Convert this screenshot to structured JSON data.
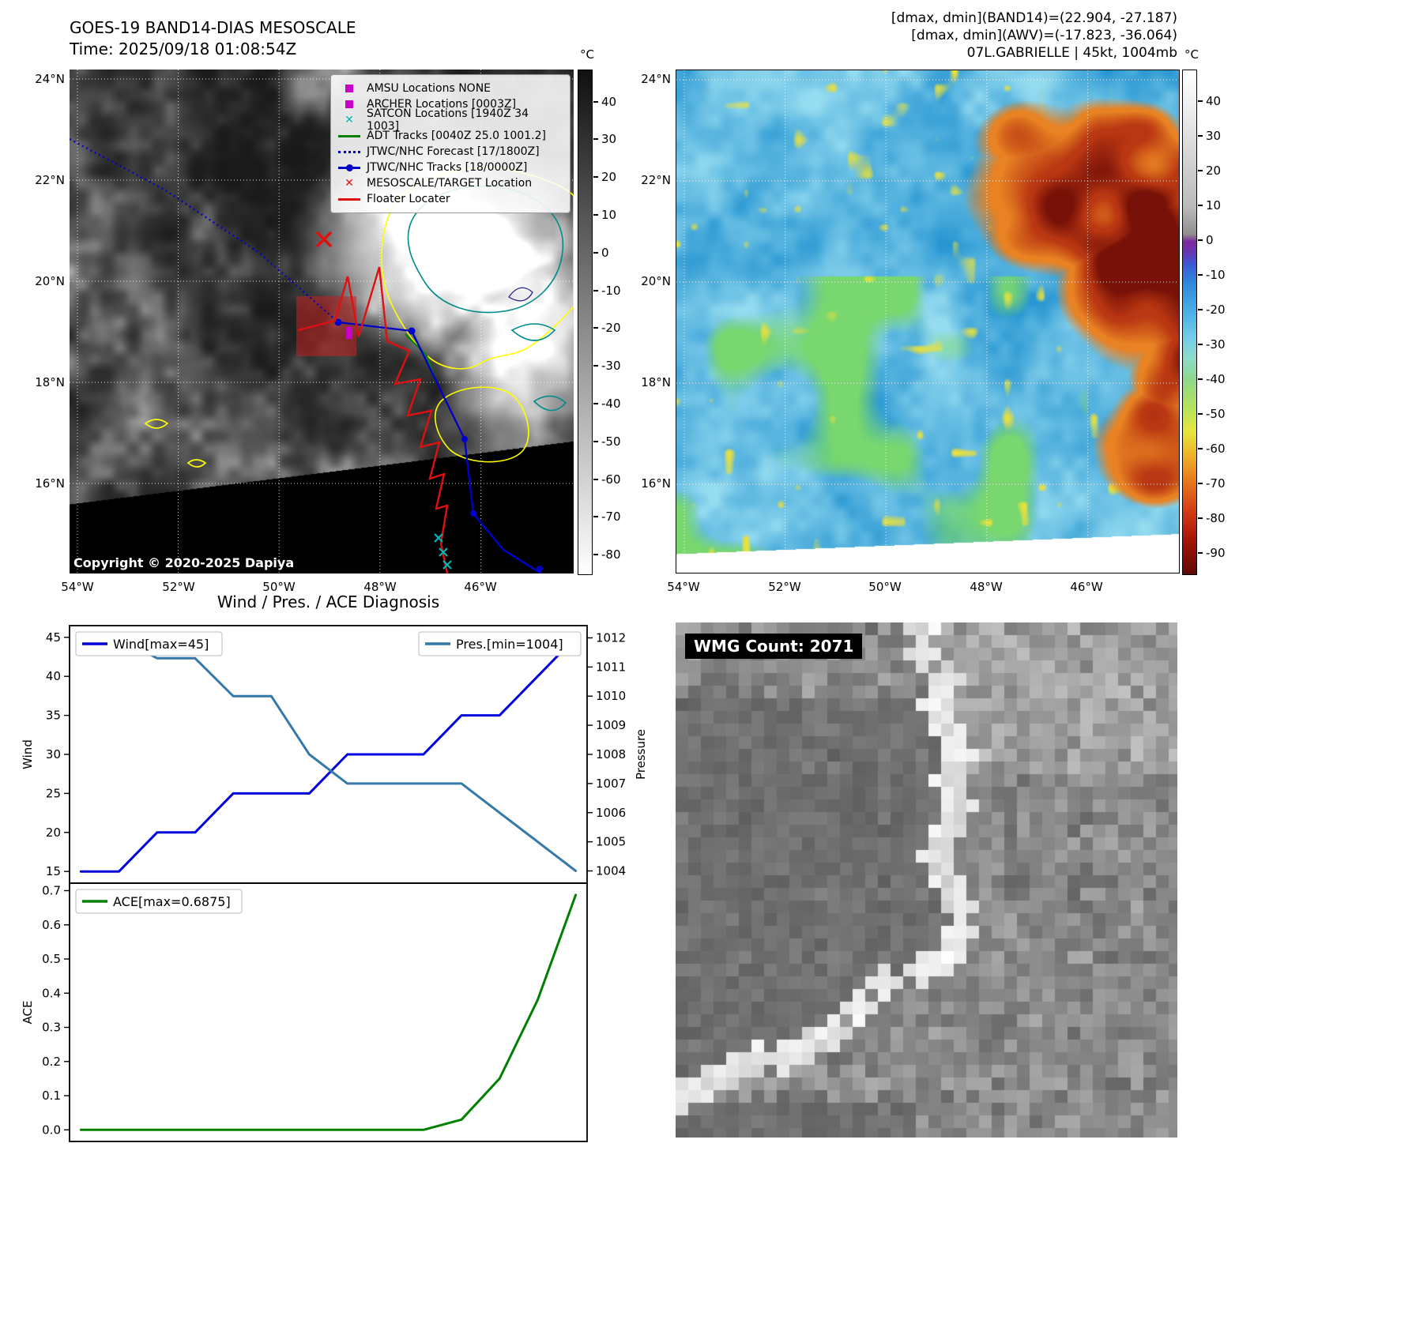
{
  "colors": {
    "wind_line": "#0000dd",
    "pressure_line": "#3579a8",
    "ace_line": "#008000",
    "track_blue": "#0000cc",
    "floater_red": "#e01010",
    "adt_green": "#008000",
    "satcon_cyan": "#00b8b8",
    "amsu_magenta": "#c800c8",
    "target_red": "#e01010"
  },
  "panel_band14": {
    "title_line1": "GOES-19 BAND14-DIAS MESOSCALE",
    "title_line2": "Time: 2025/09/18 01:08:54Z",
    "copyright": "Copyright © 2020-2025 Dapiya",
    "lat_ticks": [
      "24°N",
      "22°N",
      "20°N",
      "18°N",
      "16°N"
    ],
    "lon_ticks": [
      "54°W",
      "52°W",
      "50°W",
      "48°W",
      "46°W"
    ],
    "legend": [
      {
        "marker": "square-magenta",
        "label": "AMSU Locations NONE"
      },
      {
        "marker": "square-magenta",
        "label": "ARCHER Locations [0003Z]"
      },
      {
        "marker": "x-cyan",
        "label": "SATCON Locations [1940Z 34 1003]"
      },
      {
        "marker": "line-green",
        "label": "ADT Tracks [0040Z 25.0 1001.2]"
      },
      {
        "marker": "dotted-blue",
        "label": "JTWC/NHC Forecast [17/1800Z]"
      },
      {
        "marker": "line-dot-blue",
        "label": "JTWC/NHC Tracks [18/0000Z]"
      },
      {
        "marker": "x-red",
        "label": "MESOSCALE/TARGET Location"
      },
      {
        "marker": "line-red",
        "label": "Floater Locater"
      }
    ],
    "colorbar": {
      "unit": "°C",
      "ticks": [
        40,
        30,
        20,
        10,
        0,
        -10,
        -20,
        -30,
        -40,
        -50,
        -60,
        -70,
        -80
      ]
    }
  },
  "panel_awv": {
    "header_line1": "[dmax, dmin](BAND14)=(22.904, -27.187)",
    "header_line2": "[dmax, dmin](AWV)=(-17.823, -36.064)",
    "header_line3": "07L.GABRIELLE | 45kt, 1004mb",
    "lat_ticks": [
      "24°N",
      "22°N",
      "20°N",
      "18°N",
      "16°N"
    ],
    "lon_ticks": [
      "54°W",
      "52°W",
      "50°W",
      "48°W",
      "46°W"
    ],
    "colorbar": {
      "unit": "°C",
      "ticks": [
        40,
        30,
        20,
        10,
        0,
        -10,
        -20,
        -30,
        -40,
        -50,
        -60,
        -70,
        -80,
        -90
      ]
    }
  },
  "diagnosis": {
    "title": "Wind / Pres. / ACE Diagnosis"
  },
  "wmg": {
    "label": "WMG Count: 2071"
  },
  "chart_data": [
    {
      "type": "line",
      "title": "Wind / Pres. / ACE Diagnosis",
      "x": [
        0,
        1,
        2,
        3,
        4,
        5,
        6,
        7,
        8,
        9,
        10,
        11,
        12,
        13
      ],
      "series": [
        {
          "name": "Wind[max=45]",
          "axis": "left",
          "color": "#0000dd",
          "values": [
            15,
            15,
            20,
            20,
            25,
            25,
            25,
            30,
            30,
            30,
            35,
            35,
            40,
            45
          ]
        },
        {
          "name": "Pres.[min=1004]",
          "axis": "right",
          "color": "#3579a8",
          "values": [
            1012,
            1012,
            1011.3,
            1011.3,
            1010,
            1010,
            1008,
            1007,
            1007,
            1007,
            1007,
            1006,
            1005,
            1004
          ]
        }
      ],
      "ylabel_left": "Wind",
      "ylabel_right": "Pressure",
      "yticks_left": [
        15,
        20,
        25,
        30,
        35,
        40,
        45
      ],
      "yticks_right": [
        1004,
        1005,
        1006,
        1007,
        1008,
        1009,
        1010,
        1011,
        1012
      ],
      "ylim_left": [
        13.5,
        46.5
      ],
      "ylim_right": [
        1003.58,
        1012.42
      ],
      "legend_position": "upper-left / upper-right",
      "grid": false
    },
    {
      "type": "line",
      "x": [
        0,
        1,
        2,
        3,
        4,
        5,
        6,
        7,
        8,
        9,
        10,
        11,
        12,
        13
      ],
      "series": [
        {
          "name": "ACE[max=0.6875]",
          "color": "#008000",
          "values": [
            0,
            0,
            0,
            0,
            0,
            0,
            0,
            0,
            0,
            0,
            0.03,
            0.15,
            0.38,
            0.6875
          ]
        }
      ],
      "ylabel_left": "ACE",
      "yticks_left": [
        0,
        0.1,
        0.2,
        0.3,
        0.4,
        0.5,
        0.6,
        0.7
      ],
      "ylim_left": [
        -0.034,
        0.722
      ],
      "legend_position": "upper-left",
      "grid": false
    }
  ]
}
